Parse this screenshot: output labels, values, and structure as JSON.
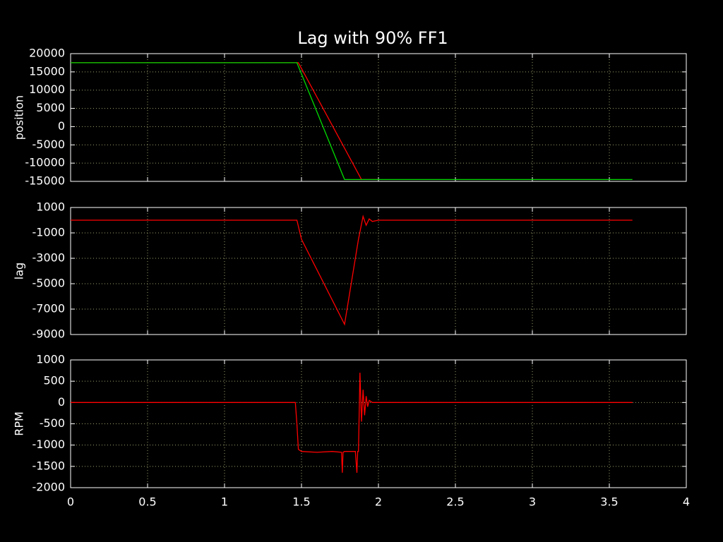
{
  "chart_data": [
    {
      "type": "line",
      "title": "Lag with 90% FF1",
      "ylabel": "position",
      "xlim": [
        0,
        4
      ],
      "xticks": [
        0,
        0.5,
        1,
        1.5,
        2,
        2.5,
        3,
        3.5,
        4
      ],
      "ylim": [
        -15000,
        20000
      ],
      "yticks": [
        20000,
        15000,
        10000,
        5000,
        0,
        -5000,
        -10000,
        -15000
      ],
      "grid": true,
      "series": [
        {
          "color": "#ff0000",
          "x": [
            0,
            1.48,
            1.89,
            2.0
          ],
          "values": [
            17500,
            17500,
            -14500,
            -14500
          ]
        },
        {
          "color": "#00dd00",
          "x": [
            0,
            1.47,
            1.78,
            3.65
          ],
          "values": [
            17500,
            17500,
            -14500,
            -14500
          ]
        }
      ]
    },
    {
      "type": "line",
      "ylabel": "lag",
      "xlim": [
        0,
        4
      ],
      "xticks": [
        0,
        0.5,
        1,
        1.5,
        2,
        2.5,
        3,
        3.5,
        4
      ],
      "ylim": [
        -9000,
        1000
      ],
      "yticks": [
        1000,
        -1000,
        -3000,
        -5000,
        -7000,
        -9000
      ],
      "grid": true,
      "series": [
        {
          "color": "#ff0000",
          "x": [
            0,
            1.47,
            1.5,
            1.78,
            1.87,
            1.9,
            1.92,
            1.94,
            1.96,
            2.0,
            3.65
          ],
          "values": [
            0,
            0,
            -1500,
            -8200,
            -1500,
            300,
            -400,
            100,
            -100,
            0,
            0
          ]
        }
      ]
    },
    {
      "type": "line",
      "ylabel": "RPM",
      "xlim": [
        0,
        4
      ],
      "xticks": [
        0,
        0.5,
        1,
        1.5,
        2,
        2.5,
        3,
        3.5,
        4
      ],
      "ylim": [
        -2000,
        1000
      ],
      "yticks": [
        1000,
        500,
        0,
        -500,
        -1000,
        -1500,
        -2000
      ],
      "grid": true,
      "series": [
        {
          "color": "#ff0000",
          "x": [
            0,
            1.46,
            1.47,
            1.48,
            1.5,
            1.6,
            1.7,
            1.76,
            1.765,
            1.77,
            1.78,
            1.85,
            1.86,
            1.865,
            1.87,
            1.88,
            1.89,
            1.9,
            1.91,
            1.92,
            1.93,
            1.94,
            1.96,
            2.0,
            3.65
          ],
          "values": [
            0,
            0,
            -500,
            -1100,
            -1150,
            -1170,
            -1150,
            -1170,
            -1650,
            -1170,
            -1150,
            -1150,
            -1650,
            -1150,
            -1150,
            700,
            -450,
            300,
            -300,
            150,
            -100,
            50,
            0,
            0,
            0
          ]
        }
      ]
    }
  ]
}
